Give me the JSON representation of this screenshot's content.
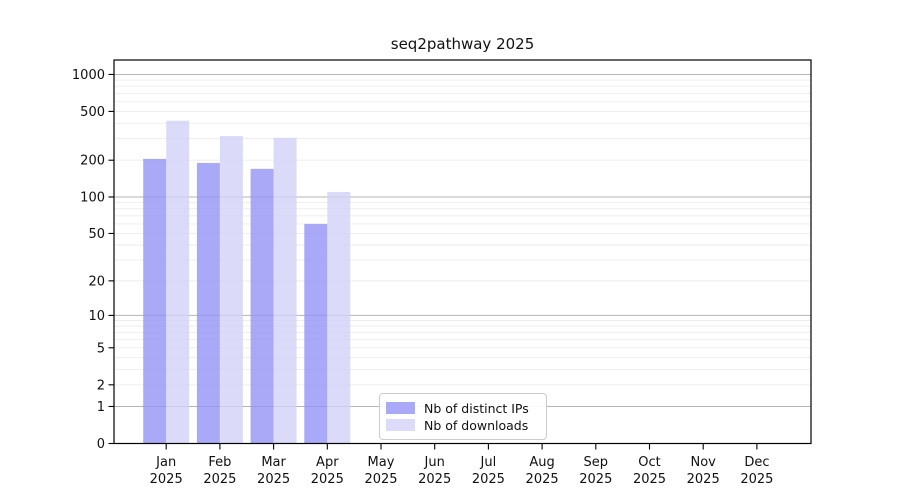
{
  "title": "seq2pathway 2025",
  "colors": {
    "distinct_ips_bar": "#9393f5",
    "downloads_bar": "#d2d2f8",
    "distinct_ips_flat": "#a9a9f8",
    "downloads_flat": "#dcdcfa",
    "major_grid": "#b5b5b5",
    "minor_grid": "#ededed",
    "axis": "#000000"
  },
  "chart_data": {
    "type": "bar",
    "title": "seq2pathway 2025",
    "categories": [
      "Jan",
      "Feb",
      "Mar",
      "Apr",
      "May",
      "Jun",
      "Jul",
      "Aug",
      "Sep",
      "Oct",
      "Nov",
      "Dec"
    ],
    "year_label": "2025",
    "series": [
      {
        "name": "Nb of distinct IPs",
        "color": "#9393f5",
        "values": [
          205,
          190,
          170,
          60,
          0,
          0,
          0,
          0,
          0,
          0,
          0,
          0
        ]
      },
      {
        "name": "Nb of downloads",
        "color": "#d2d2f8",
        "values": [
          420,
          315,
          305,
          110,
          0,
          0,
          0,
          0,
          0,
          0,
          0,
          0
        ]
      }
    ],
    "yscale": "log1p",
    "yticks": [
      0,
      1,
      2,
      5,
      10,
      20,
      50,
      100,
      200,
      500,
      1000
    ],
    "major_gridlines": [
      1,
      10,
      100,
      1000
    ],
    "ylim": [
      0,
      1000
    ],
    "grid": true,
    "legend_position": "inside-bottom-center"
  }
}
